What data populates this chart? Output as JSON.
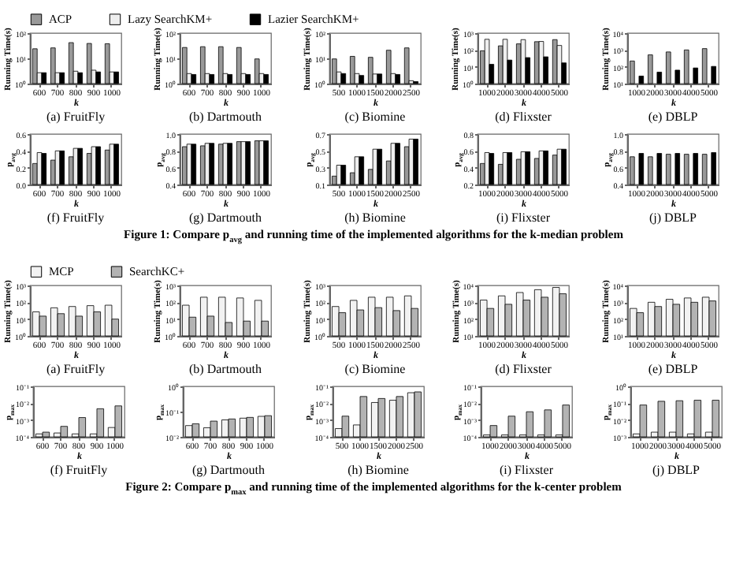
{
  "chart_data": [
    {
      "type": "bar",
      "title": "(a) FruitFly",
      "xlabel": "k",
      "ylabel": "Running Time(s)",
      "categories": [
        "600",
        "700",
        "800",
        "900",
        "1000"
      ],
      "log": true,
      "legend": "top",
      "ylim": [
        1,
        100
      ],
      "yticks": [
        {
          "value": 1,
          "label": "10⁰"
        },
        {
          "value": 10,
          "label": "10¹"
        },
        {
          "value": 100,
          "label": "10²"
        }
      ],
      "series": [
        {
          "name": "ACP",
          "color": "#999999",
          "values": [
            24,
            26,
            42,
            39,
            38
          ]
        },
        {
          "name": "Lazy SearchKM+",
          "color": "#eeeeee",
          "values": [
            2.7,
            2.7,
            3.1,
            3.4,
            2.9
          ]
        },
        {
          "name": "Lazier SearchKM+",
          "color": "#000000",
          "values": [
            2.7,
            2.7,
            2.7,
            2.9,
            2.9
          ]
        }
      ]
    },
    {
      "type": "bar",
      "title": "(b) Dartmouth",
      "xlabel": "k",
      "ylabel": "Running Time(s)",
      "categories": [
        "600",
        "700",
        "800",
        "900",
        "1000"
      ],
      "log": true,
      "ylim": [
        1,
        100
      ],
      "yticks": [
        {
          "value": 1,
          "label": "10⁰"
        },
        {
          "value": 10,
          "label": "10¹"
        },
        {
          "value": 100,
          "label": "10²"
        }
      ],
      "series": [
        {
          "color": "#999999",
          "values": [
            27,
            29,
            29,
            27,
            9.5
          ]
        },
        {
          "color": "#eeeeee",
          "values": [
            2.5,
            2.5,
            2.5,
            2.5,
            2.5
          ]
        },
        {
          "color": "#000000",
          "values": [
            2.3,
            2.3,
            2.3,
            2.3,
            2.3
          ]
        }
      ]
    },
    {
      "type": "bar",
      "title": "(c) Biomine",
      "xlabel": "k",
      "ylabel": "Running Time(s)",
      "categories": [
        "500",
        "1000",
        "1500",
        "2000",
        "2500"
      ],
      "log": true,
      "ylim": [
        1,
        100
      ],
      "yticks": [
        {
          "value": 1,
          "label": "10⁰"
        },
        {
          "value": 10,
          "label": "10¹"
        },
        {
          "value": 100,
          "label": "10²"
        }
      ],
      "series": [
        {
          "color": "#999999",
          "values": [
            9.5,
            12,
            11,
            21,
            26
          ]
        },
        {
          "color": "#eeeeee",
          "values": [
            2.9,
            2.5,
            2.4,
            2.5,
            1.3
          ]
        },
        {
          "color": "#000000",
          "values": [
            2.5,
            2.1,
            2.4,
            2.3,
            1.2
          ]
        }
      ]
    },
    {
      "type": "bar",
      "title": "(d) Flixster",
      "xlabel": "k",
      "ylabel": "Running Time(s)",
      "categories": [
        "1000",
        "2000",
        "3000",
        "4000",
        "5000"
      ],
      "log": true,
      "ylim": [
        1,
        1000
      ],
      "yticks": [
        {
          "value": 1,
          "label": "10⁰"
        },
        {
          "value": 10,
          "label": "10¹"
        },
        {
          "value": 100,
          "label": "10²"
        },
        {
          "value": 1000,
          "label": "10³"
        }
      ],
      "series": [
        {
          "color": "#999999",
          "values": [
            89,
            175,
            230,
            310,
            410
          ]
        },
        {
          "color": "#eeeeee",
          "values": [
            430,
            430,
            410,
            320,
            185
          ]
        },
        {
          "color": "#000000",
          "values": [
            14,
            25,
            35,
            39,
            17
          ]
        }
      ]
    },
    {
      "type": "bar",
      "title": "(e) DBLP",
      "xlabel": "k",
      "ylabel": "Running Time(s)",
      "categories": [
        "1000",
        "2000",
        "3000",
        "4000",
        "5000"
      ],
      "log": true,
      "ylim": [
        10,
        10000
      ],
      "yticks": [
        {
          "value": 10,
          "label": "10¹"
        },
        {
          "value": 100,
          "label": "10²"
        },
        {
          "value": 1000,
          "label": "10³"
        },
        {
          "value": 10000,
          "label": "10⁴"
        }
      ],
      "series": [
        {
          "color": "#999999",
          "values": [
            220,
            510,
            760,
            1000,
            1200
          ]
        },
        {
          "color": "#eeeeee",
          "values": [
            null,
            null,
            null,
            null,
            null
          ]
        },
        {
          "color": "#000000",
          "values": [
            28,
            48,
            63,
            85,
            105
          ]
        }
      ]
    },
    {
      "type": "bar",
      "title": "(f) FruitFly",
      "xlabel": "k",
      "ylabel": "p$_{avg}$",
      "categories": [
        "600",
        "700",
        "800",
        "900",
        "1000"
      ],
      "ylim": [
        0,
        0.6
      ],
      "yticks": [
        {
          "value": 0,
          "label": "0.0"
        },
        0.2,
        0.4,
        0.6
      ],
      "series": [
        {
          "color": "#999999",
          "values": [
            0.25,
            0.29,
            0.33,
            0.37,
            0.41
          ]
        },
        {
          "color": "#eeeeee",
          "values": [
            0.38,
            0.4,
            0.43,
            0.45,
            0.48
          ]
        },
        {
          "color": "#000000",
          "values": [
            0.37,
            0.4,
            0.43,
            0.45,
            0.48
          ]
        }
      ]
    },
    {
      "type": "bar",
      "title": "(g) Dartmouth",
      "xlabel": "k",
      "ylabel": "p$_{avg}$",
      "categories": [
        "600",
        "700",
        "800",
        "900",
        "1000"
      ],
      "ylim": [
        0.4,
        1
      ],
      "yticks": [
        0.4,
        0.6,
        0.8,
        {
          "value": 1,
          "label": "1.0"
        }
      ],
      "series": [
        {
          "color": "#999999",
          "values": [
            0.85,
            0.86,
            0.88,
            0.91,
            0.92
          ]
        },
        {
          "color": "#eeeeee",
          "values": [
            0.88,
            0.89,
            0.89,
            0.91,
            0.92
          ]
        },
        {
          "color": "#000000",
          "values": [
            0.88,
            0.89,
            0.89,
            0.91,
            0.92
          ]
        }
      ]
    },
    {
      "type": "bar",
      "title": "(h) Biomine",
      "xlabel": "k",
      "ylabel": "p$_{avg}$",
      "categories": [
        "500",
        "1000",
        "1500",
        "2000",
        "2500"
      ],
      "ylim": [
        0.1,
        0.7
      ],
      "yticks": [
        0.1,
        0.3,
        0.5,
        0.7
      ],
      "series": [
        {
          "color": "#999999",
          "values": [
            0.2,
            0.24,
            0.28,
            0.38,
            0.55
          ]
        },
        {
          "color": "#eeeeee",
          "values": [
            0.33,
            0.43,
            0.52,
            0.59,
            0.64
          ]
        },
        {
          "color": "#000000",
          "values": [
            0.33,
            0.43,
            0.52,
            0.59,
            0.64
          ]
        }
      ]
    },
    {
      "type": "bar",
      "title": "(i) Flixster",
      "xlabel": "k",
      "ylabel": "p$_{avg}$",
      "categories": [
        "1000",
        "2000",
        "3000",
        "4000",
        "5000"
      ],
      "ylim": [
        0.2,
        0.8
      ],
      "yticks": [
        0.2,
        0.4,
        0.6,
        0.8
      ],
      "series": [
        {
          "color": "#999999",
          "values": [
            0.45,
            0.44,
            0.5,
            0.51,
            0.55
          ]
        },
        {
          "color": "#eeeeee",
          "values": [
            0.58,
            0.58,
            0.59,
            0.6,
            0.62
          ]
        },
        {
          "color": "#000000",
          "values": [
            0.57,
            0.58,
            0.59,
            0.6,
            0.62
          ]
        }
      ]
    },
    {
      "type": "bar",
      "title": "(j) DBLP",
      "xlabel": "k",
      "ylabel": "p$_{avg}$",
      "categories": [
        "1000",
        "2000",
        "3000",
        "4000",
        "5000"
      ],
      "ylim": [
        0.4,
        1
      ],
      "yticks": [
        0.4,
        0.6,
        0.8,
        {
          "value": 1,
          "label": "1.0"
        }
      ],
      "annotations": [
        "Figure 1: Compare p$_{avg}$ and running time of the implemented algorithms for the k-median problem"
      ],
      "series": [
        {
          "color": "#999999",
          "values": [
            0.73,
            0.73,
            0.76,
            0.76,
            0.76
          ]
        },
        {
          "color": "#eeeeee",
          "values": [
            null,
            null,
            null,
            null,
            null
          ]
        },
        {
          "color": "#000000",
          "values": [
            0.77,
            0.77,
            0.77,
            0.77,
            0.78
          ]
        }
      ]
    },
    {
      "type": "bar",
      "title": "(a) FruitFly",
      "xlabel": "k",
      "ylabel": "Running Time(s)",
      "categories": [
        "600",
        "700",
        "800",
        "900",
        "1000"
      ],
      "log": true,
      "legend": "top",
      "ylim": [
        1,
        1000
      ],
      "yticks": [
        {
          "value": 1,
          "label": "10⁰"
        },
        {
          "value": 10,
          "label": "10¹"
        },
        {
          "value": 100,
          "label": "10²"
        },
        {
          "value": 1000,
          "label": "10³"
        }
      ],
      "series": [
        {
          "name": "MCP",
          "color": "#f2f2f2",
          "values": [
            27,
            47,
            56,
            63,
            67
          ]
        },
        {
          "name": "SearchKC+",
          "color": "#b3b3b3",
          "values": [
            15,
            21,
            15,
            27,
            10
          ]
        }
      ]
    },
    {
      "type": "bar",
      "title": "(b) Dartmouth",
      "xlabel": "k",
      "ylabel": "Running Time(s)",
      "categories": [
        "600",
        "700",
        "800",
        "900",
        "1000"
      ],
      "log": true,
      "ylim": [
        1,
        1000
      ],
      "yticks": [
        {
          "value": 1,
          "label": "10⁰"
        },
        {
          "value": 10,
          "label": "10¹"
        },
        {
          "value": 100,
          "label": "10²"
        },
        {
          "value": 1000,
          "label": "10³"
        }
      ],
      "series": [
        {
          "color": "#f2f2f2",
          "values": [
            67,
            200,
            200,
            180,
            130
          ]
        },
        {
          "color": "#b3b3b3",
          "values": [
            13,
            15,
            6.3,
            7.6,
            7.6
          ]
        }
      ]
    },
    {
      "type": "bar",
      "title": "(c) Biomine",
      "xlabel": "k",
      "ylabel": "Running Time(s)",
      "categories": [
        "500",
        "1000",
        "1500",
        "2000",
        "2500"
      ],
      "log": true,
      "ylim": [
        1,
        1000
      ],
      "yticks": [
        {
          "value": 1,
          "label": "10⁰"
        },
        {
          "value": 10,
          "label": "10¹"
        },
        {
          "value": 100,
          "label": "10²"
        },
        {
          "value": 1000,
          "label": "10³"
        }
      ],
      "series": [
        {
          "color": "#f2f2f2",
          "values": [
            56,
            130,
            200,
            200,
            240
          ]
        },
        {
          "color": "#b3b3b3",
          "values": [
            24,
            35,
            48,
            32,
            43
          ]
        }
      ]
    },
    {
      "type": "bar",
      "title": "(d) Flixster",
      "xlabel": "k",
      "ylabel": "Running Time(s)",
      "categories": [
        "1000",
        "2000",
        "3000",
        "4000",
        "5000"
      ],
      "log": true,
      "ylim": [
        10,
        10000
      ],
      "yticks": [
        {
          "value": 10,
          "label": "10¹"
        },
        {
          "value": 100,
          "label": "10²"
        },
        {
          "value": 1000,
          "label": "10³"
        },
        {
          "value": 10000,
          "label": "10⁴"
        }
      ],
      "series": [
        {
          "color": "#f2f2f2",
          "values": [
            1350,
            2400,
            3800,
            5600,
            7600
          ]
        },
        {
          "color": "#b3b3b3",
          "values": [
            430,
            760,
            1350,
            2000,
            3200
          ]
        }
      ]
    },
    {
      "type": "bar",
      "title": "(e) DBLP",
      "xlabel": "k",
      "ylabel": "Running Time(s)",
      "categories": [
        "1000",
        "2000",
        "3000",
        "4000",
        "5000"
      ],
      "log": true,
      "ylim": [
        10,
        10000
      ],
      "yticks": [
        {
          "value": 10,
          "label": "10¹"
        },
        {
          "value": 100,
          "label": "10²"
        },
        {
          "value": 1000,
          "label": "10³"
        },
        {
          "value": 10000,
          "label": "10⁴"
        }
      ],
      "series": [
        {
          "color": "#f2f2f2",
          "values": [
            430,
            1000,
            1500,
            1800,
            2000
          ]
        },
        {
          "color": "#b3b3b3",
          "values": [
            240,
            560,
            760,
            1000,
            1200
          ]
        }
      ]
    },
    {
      "type": "bar",
      "title": "(f) FruitFly",
      "xlabel": "k",
      "ylabel": "p$_{max}$",
      "categories": [
        "600",
        "700",
        "800",
        "900",
        "1000"
      ],
      "log": true,
      "ylim": [
        0.0001,
        0.1
      ],
      "yticks": [
        {
          "value": 0.0001,
          "label": "10⁻⁴"
        },
        {
          "value": 0.001,
          "label": "10⁻³"
        },
        {
          "value": 0.01,
          "label": "10⁻²"
        },
        {
          "value": 0.1,
          "label": "10⁻¹"
        }
      ],
      "series": [
        {
          "color": "#f2f2f2",
          "values": [
            0.00015,
            0.00017,
            0.00015,
            0.00015,
            0.00036
          ]
        },
        {
          "color": "#b3b3b3",
          "values": [
            0.00019,
            0.00042,
            0.0014,
            0.0047,
            0.0069
          ]
        }
      ]
    },
    {
      "type": "bar",
      "title": "(g) Dartmouth",
      "xlabel": "k",
      "ylabel": "p$_{max}$",
      "categories": [
        "600",
        "700",
        "800",
        "900",
        "1000"
      ],
      "log": true,
      "ylim": [
        0.01,
        1
      ],
      "yticks": [
        {
          "value": 0.01,
          "label": "10⁻²"
        },
        {
          "value": 0.1,
          "label": "10⁻¹"
        },
        {
          "value": 1,
          "label": "10⁰"
        }
      ],
      "series": [
        {
          "color": "#f2f2f2",
          "values": [
            0.028,
            0.023,
            0.047,
            0.055,
            0.065
          ]
        },
        {
          "color": "#b3b3b3",
          "values": [
            0.033,
            0.042,
            0.051,
            0.059,
            0.069
          ]
        }
      ]
    },
    {
      "type": "bar",
      "title": "(h) Biomine",
      "xlabel": "k",
      "ylabel": "p$_{max}$",
      "categories": [
        "500",
        "1000",
        "1500",
        "2000",
        "2500"
      ],
      "log": true,
      "ylim": [
        0.0001,
        0.1
      ],
      "yticks": [
        {
          "value": 0.0001,
          "label": "10⁻⁴"
        },
        {
          "value": 0.001,
          "label": "10⁻³"
        },
        {
          "value": 0.01,
          "label": "10⁻²"
        },
        {
          "value": 0.1,
          "label": "10⁻¹"
        }
      ],
      "series": [
        {
          "color": "#f2f2f2",
          "values": [
            0.00031,
            0.00051,
            0.011,
            0.015,
            0.042
          ]
        },
        {
          "color": "#b3b3b3",
          "values": [
            0.0017,
            0.025,
            0.019,
            0.025,
            0.047
          ]
        }
      ]
    },
    {
      "type": "bar",
      "title": "(i) Flixster",
      "xlabel": "k",
      "ylabel": "p$_{max}$",
      "categories": [
        "1000",
        "2000",
        "3000",
        "4000",
        "5000"
      ],
      "log": true,
      "ylim": [
        0.0001,
        0.1
      ],
      "yticks": [
        {
          "value": 0.0001,
          "label": "10⁻⁴"
        },
        {
          "value": 0.001,
          "label": "10⁻³"
        },
        {
          "value": 0.01,
          "label": "10⁻²"
        },
        {
          "value": 0.1,
          "label": "10⁻¹"
        }
      ],
      "series": [
        {
          "color": "#f2f2f2",
          "values": [
            0.00013,
            0.00013,
            0.00013,
            0.00013,
            0.00013
          ]
        },
        {
          "color": "#b3b3b3",
          "values": [
            0.00047,
            0.0017,
            0.0031,
            0.004,
            0.0078
          ]
        }
      ]
    },
    {
      "type": "bar",
      "title": "(j) DBLP",
      "xlabel": "k",
      "ylabel": "p$_{max}$",
      "categories": [
        "1000",
        "2000",
        "3000",
        "4000",
        "5000"
      ],
      "log": true,
      "ylim": [
        0.001,
        1
      ],
      "yticks": [
        {
          "value": 0.001,
          "label": "10⁻³"
        },
        {
          "value": 0.01,
          "label": "10⁻²"
        },
        {
          "value": 0.1,
          "label": "10⁻¹"
        },
        {
          "value": 1,
          "label": "10⁰"
        }
      ],
      "annotations": [
        "Figure 2: Compare p$_{max}$ and running time of the implemented algorithms for the k-center problem"
      ],
      "series": [
        {
          "color": "#f2f2f2",
          "values": [
            0.0015,
            0.0019,
            0.0019,
            0.0015,
            0.0019
          ]
        },
        {
          "color": "#b3b3b3",
          "values": [
            0.078,
            0.13,
            0.14,
            0.15,
            0.15
          ]
        }
      ]
    }
  ]
}
